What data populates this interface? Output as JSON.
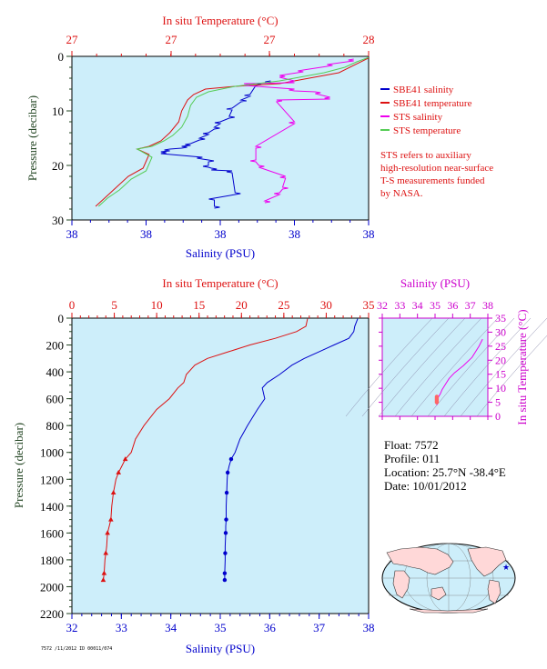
{
  "colors": {
    "plot_bg": "#cdeefa",
    "salinity": "#0000cc",
    "temperature": "#dd1111",
    "sts_salinity": "#ee00ee",
    "sts_temperature": "#55cc55",
    "ts_axis": "#cc00cc",
    "pressure_axis": "#224422"
  },
  "top_panel": {
    "title_top": "In situ Temperature (°C)",
    "xlabel": "Salinity (PSU)",
    "ylabel": "Pressure (decibar)",
    "top_ticks": [
      "27",
      "27",
      "27",
      "28"
    ],
    "bottom_ticks": [
      "38",
      "38",
      "38",
      "38",
      "38"
    ],
    "y_ticks": [
      "0",
      "10",
      "20",
      "30"
    ],
    "legend": [
      {
        "label": "SBE41 salinity",
        "color": "#0000cc"
      },
      {
        "label": "SBE41 temperature",
        "color": "#dd1111"
      },
      {
        "label": "STS salinity",
        "color": "#ee00ee"
      },
      {
        "label": "STS temperature",
        "color": "#55cc55"
      }
    ],
    "note": [
      "STS refers to auxiliary",
      "high-resolution near-surface",
      "T-S measurements funded",
      "by NASA."
    ]
  },
  "bottom_panel": {
    "title_top": "In situ Temperature (°C)",
    "xlabel": "Salinity (PSU)",
    "ylabel": "Pressure (decibar)",
    "top_ticks": [
      "0",
      "5",
      "10",
      "15",
      "20",
      "25",
      "30",
      "35"
    ],
    "bottom_ticks": [
      "32",
      "33",
      "34",
      "35",
      "36",
      "37",
      "38"
    ],
    "y_ticks": [
      "0",
      "200",
      "400",
      "600",
      "800",
      "1000",
      "1200",
      "1400",
      "1600",
      "1800",
      "2000",
      "2200"
    ]
  },
  "ts_panel": {
    "title_top": "Salinity (PSU)",
    "ylabel": "In situ Temperature (°C)",
    "top_ticks": [
      "32",
      "33",
      "34",
      "35",
      "36",
      "37",
      "38"
    ],
    "y_ticks": [
      "0",
      "5",
      "10",
      "15",
      "20",
      "25",
      "30",
      "35"
    ]
  },
  "float_info": {
    "float": "Float:  7572",
    "profile": "Profile:  011",
    "location": "Location:  25.7°N  -38.4°E",
    "date": "Date:  10/01/2012"
  },
  "footer_code": "7572 /11/2012  ID 00011/074",
  "chart_data": [
    {
      "type": "line",
      "name": "top-near-surface-profile",
      "title": "In situ Temperature (°C)",
      "xlabel": "Salinity (PSU)",
      "ylabel": "Pressure (decibar)",
      "ylim": [
        0,
        30
      ],
      "series": [
        {
          "name": "SBE41 salinity",
          "x_frac": [
            0.67,
            0.62,
            0.6,
            0.57,
            0.54,
            0.53,
            0.5,
            0.48,
            0.46,
            0.43,
            0.4,
            0.37,
            0.33,
            0.3,
            0.44,
            0.46,
            0.46,
            0.47,
            0.54,
            0.55,
            0.48,
            0.48
          ],
          "y": [
            4.5,
            5.0,
            7.0,
            8.0,
            9.5,
            11.0,
            12.0,
            13.0,
            14.0,
            15.0,
            16.0,
            16.5,
            17.0,
            17.5,
            18.5,
            19.0,
            20.0,
            20.5,
            21.0,
            25.0,
            26.0,
            27.5
          ]
        },
        {
          "name": "SBE41 temperature",
          "x_frac": [
            1.0,
            0.9,
            0.7,
            0.55,
            0.45,
            0.41,
            0.39,
            0.37,
            0.36,
            0.33,
            0.3,
            0.26,
            0.22,
            0.26,
            0.24,
            0.19,
            0.15,
            0.11,
            0.08
          ],
          "y": [
            0.3,
            3.0,
            5.0,
            5.5,
            6.0,
            7.0,
            8.0,
            10.0,
            12.0,
            14.0,
            15.5,
            16.5,
            17.0,
            18.0,
            20.5,
            22.0,
            24.0,
            26.0,
            27.5
          ]
        },
        {
          "name": "STS salinity",
          "x_frac": [
            0.95,
            0.86,
            0.78,
            0.7,
            0.75,
            0.58,
            0.75,
            0.82,
            0.87,
            0.69,
            0.75,
            0.62,
            0.62,
            0.63,
            0.72,
            0.71,
            0.7,
            0.65
          ],
          "y": [
            0.5,
            1.5,
            2.5,
            3.5,
            4.5,
            5.0,
            6.0,
            6.5,
            7.5,
            8.0,
            12.0,
            16.5,
            19.0,
            20.0,
            22.0,
            24.0,
            25.0,
            26.5
          ]
        },
        {
          "name": "STS temperature",
          "x_frac": [
            1.0,
            0.96,
            0.92,
            0.85,
            0.7,
            0.55,
            0.46,
            0.42,
            0.4,
            0.39,
            0.37,
            0.34,
            0.31,
            0.27,
            0.22,
            0.27,
            0.25,
            0.2,
            0.16,
            0.12,
            0.09
          ],
          "y": [
            0.2,
            1.0,
            2.0,
            3.0,
            4.5,
            5.5,
            6.5,
            7.5,
            9.0,
            11.0,
            13.0,
            14.5,
            15.5,
            16.5,
            17.0,
            18.5,
            21.0,
            22.5,
            24.5,
            26.0,
            27.5
          ]
        }
      ]
    },
    {
      "type": "line",
      "name": "full-depth-profile",
      "title": "In situ Temperature (°C)",
      "xlabel": "Salinity (PSU)",
      "ylabel": "Pressure (decibar)",
      "xlim": [
        32,
        38
      ],
      "temperature_xlim": [
        0,
        35
      ],
      "ylim": [
        0,
        2200
      ],
      "series": [
        {
          "name": "Salinity",
          "x": [
            37.78,
            37.72,
            37.7,
            37.6,
            37.3,
            37.0,
            36.7,
            36.45,
            36.2,
            35.95,
            35.85,
            35.9,
            35.75,
            35.55,
            35.4,
            35.3,
            35.22,
            35.18,
            35.15,
            35.14,
            35.13,
            35.12,
            35.12,
            35.11,
            35.11,
            35.1,
            35.1,
            35.1,
            35.09,
            35.09
          ],
          "y": [
            5,
            60,
            100,
            150,
            200,
            250,
            300,
            350,
            420,
            480,
            520,
            600,
            680,
            800,
            900,
            1000,
            1050,
            1100,
            1150,
            1200,
            1300,
            1400,
            1500,
            1550,
            1600,
            1700,
            1750,
            1800,
            1900,
            1950
          ]
        },
        {
          "name": "Temperature",
          "x": [
            27.8,
            27.6,
            26.5,
            24.0,
            21.0,
            18.5,
            16.0,
            14.5,
            13.5,
            13.2,
            12.5,
            11.5,
            10.0,
            8.5,
            7.5,
            7.0,
            6.3,
            5.9,
            5.5,
            5.2,
            4.9,
            4.7,
            4.6,
            4.4,
            4.2,
            4.1,
            4.0,
            3.9,
            3.8,
            3.7
          ],
          "y": [
            5,
            60,
            100,
            150,
            200,
            250,
            300,
            350,
            420,
            480,
            520,
            600,
            680,
            800,
            900,
            1000,
            1050,
            1100,
            1150,
            1200,
            1300,
            1400,
            1500,
            1550,
            1600,
            1700,
            1750,
            1800,
            1900,
            1950
          ]
        }
      ]
    },
    {
      "type": "line",
      "name": "ts-diagram",
      "title": "Salinity (PSU)",
      "ylabel": "In situ Temperature (°C)",
      "xlim": [
        32,
        38
      ],
      "ylim": [
        0,
        35
      ],
      "series": [
        {
          "name": "T-S",
          "x": [
            37.7,
            37.5,
            37.1,
            36.6,
            36.1,
            35.8,
            35.6,
            35.4,
            35.3,
            35.2,
            35.15,
            35.12,
            35.1
          ],
          "y": [
            27.5,
            25.0,
            21.0,
            18.0,
            15.5,
            13.5,
            11.5,
            9.5,
            8.0,
            7.0,
            6.0,
            5.0,
            4.0
          ]
        }
      ]
    }
  ]
}
